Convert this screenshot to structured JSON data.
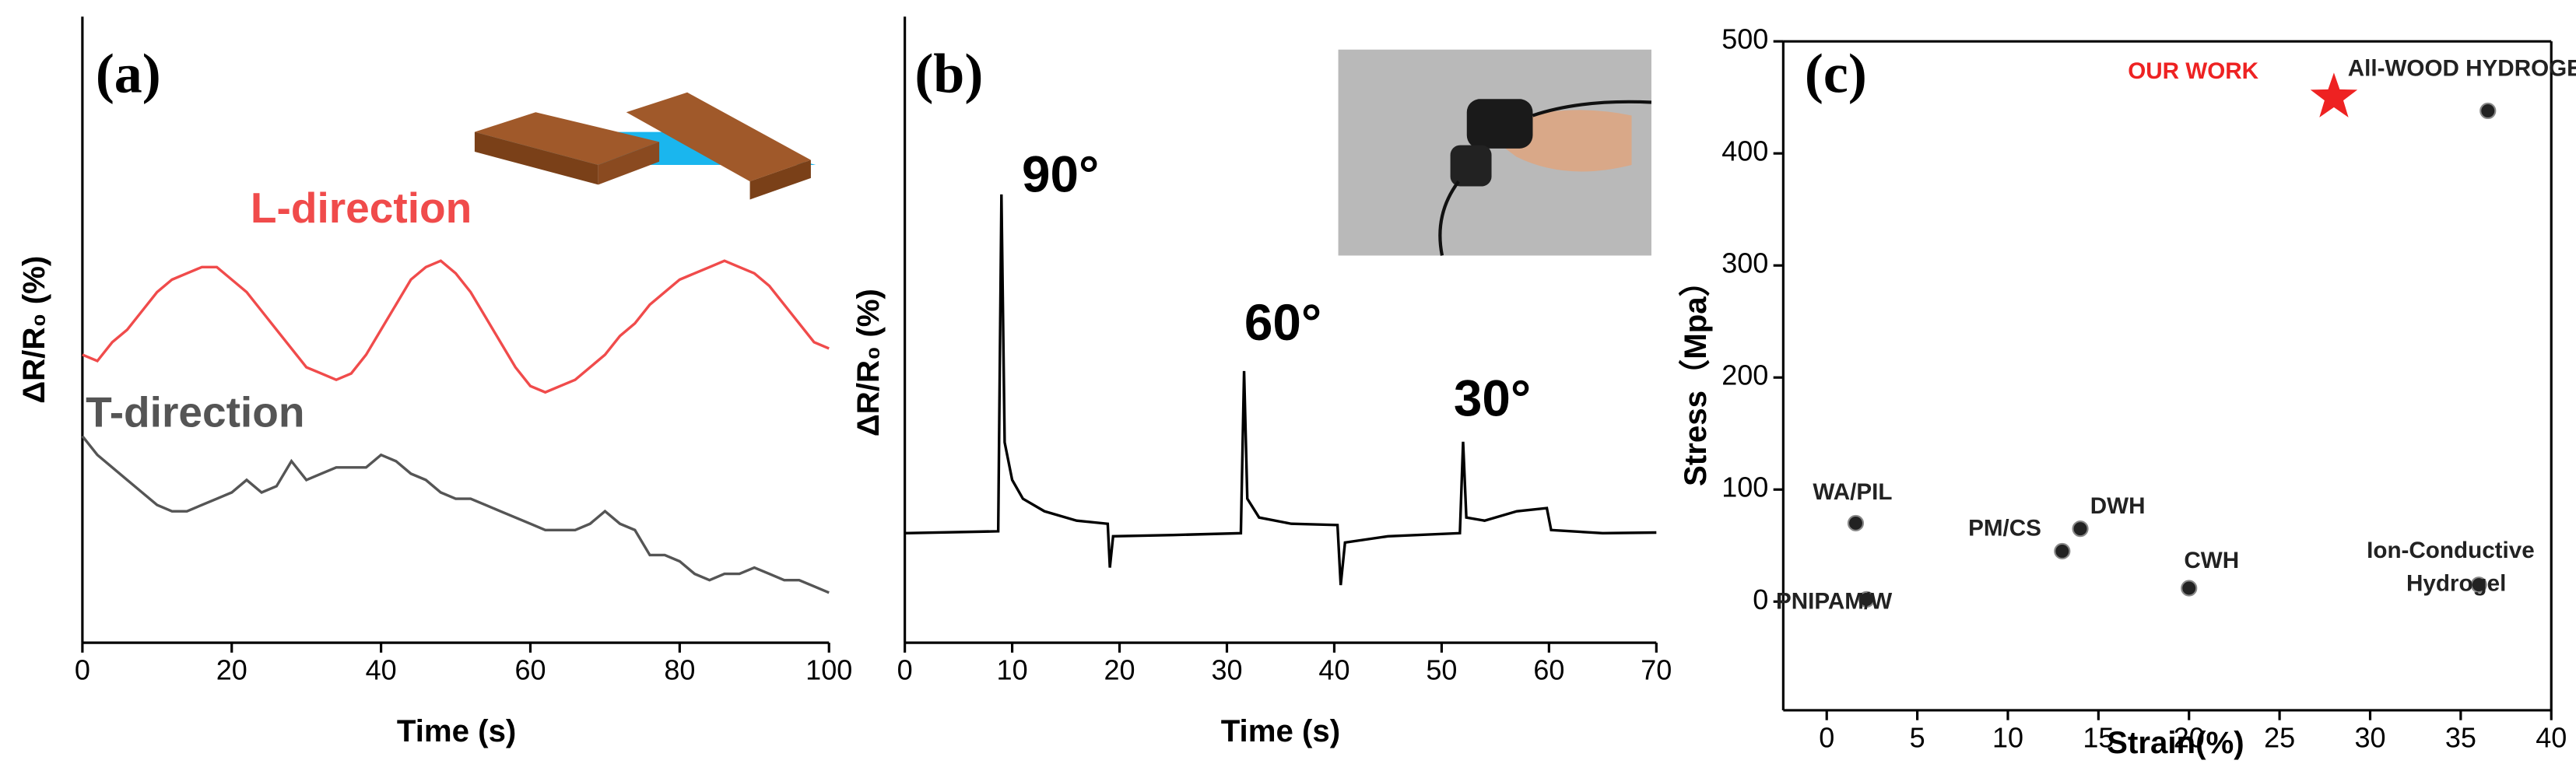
{
  "chart_data": [
    {
      "type": "line",
      "panel_label": "(a)",
      "xlabel": "Time (s)",
      "ylabel": "ΔR/R₀ (%)",
      "xlim": [
        0,
        100
      ],
      "ylim": [
        0,
        10
      ],
      "xticks": [
        0,
        20,
        40,
        60,
        80,
        100
      ],
      "x": [
        0,
        2,
        4,
        6,
        8,
        10,
        12,
        14,
        16,
        18,
        20,
        22,
        24,
        26,
        28,
        30,
        32,
        34,
        36,
        38,
        40,
        42,
        44,
        46,
        48,
        50,
        52,
        54,
        56,
        58,
        60,
        62,
        64,
        66,
        68,
        70,
        72,
        74,
        76,
        78,
        80,
        82,
        84,
        86,
        88,
        90,
        92,
        94,
        96,
        98,
        100
      ],
      "series": [
        {
          "name": "L-direction",
          "color": "#f04b4b",
          "values": [
            4.6,
            4.5,
            4.8,
            5.0,
            5.3,
            5.6,
            5.8,
            5.9,
            6.0,
            6.0,
            5.8,
            5.6,
            5.3,
            5.0,
            4.7,
            4.4,
            4.3,
            4.2,
            4.3,
            4.6,
            5.0,
            5.4,
            5.8,
            6.0,
            6.1,
            5.9,
            5.6,
            5.2,
            4.8,
            4.4,
            4.1,
            4.0,
            4.1,
            4.2,
            4.4,
            4.6,
            4.9,
            5.1,
            5.4,
            5.6,
            5.8,
            5.9,
            6.0,
            6.1,
            6.0,
            5.9,
            5.7,
            5.4,
            5.1,
            4.8,
            4.7
          ]
        },
        {
          "name": "T-direction",
          "color": "#555555",
          "values": [
            3.3,
            3.0,
            2.8,
            2.6,
            2.4,
            2.2,
            2.1,
            2.1,
            2.2,
            2.3,
            2.4,
            2.6,
            2.4,
            2.5,
            2.9,
            2.6,
            2.7,
            2.8,
            2.8,
            2.8,
            3.0,
            2.9,
            2.7,
            2.6,
            2.4,
            2.3,
            2.3,
            2.2,
            2.1,
            2.0,
            1.9,
            1.8,
            1.8,
            1.8,
            1.9,
            2.1,
            1.9,
            1.8,
            1.4,
            1.4,
            1.3,
            1.1,
            1.0,
            1.1,
            1.1,
            1.2,
            1.1,
            1.0,
            1.0,
            0.9,
            0.8
          ]
        }
      ]
    },
    {
      "type": "line",
      "panel_label": "(b)",
      "xlabel": "Time (s)",
      "ylabel": "ΔR/R₀ (%)",
      "xlim": [
        0,
        70
      ],
      "ylim": [
        0,
        10
      ],
      "xticks": [
        0,
        10,
        20,
        30,
        40,
        50,
        60,
        70
      ],
      "x": [
        0,
        8.7,
        9.0,
        9.3,
        10,
        11,
        13,
        16,
        18.9,
        19.1,
        19.4,
        25,
        31.3,
        31.6,
        31.9,
        33,
        36,
        40.3,
        40.6,
        41,
        45,
        51.7,
        52,
        52.3,
        54,
        57,
        59.8,
        60.2,
        65,
        70
      ],
      "series": [
        {
          "color": "#000000",
          "values": [
            1.75,
            1.78,
            7.16,
            3.2,
            2.6,
            2.3,
            2.1,
            1.95,
            1.9,
            1.2,
            1.7,
            1.72,
            1.75,
            4.34,
            2.3,
            2.0,
            1.9,
            1.88,
            0.92,
            1.6,
            1.7,
            1.75,
            3.21,
            2.0,
            1.95,
            2.1,
            2.15,
            1.8,
            1.75,
            1.76
          ]
        }
      ],
      "annotations": [
        "90°",
        "60°",
        "30°"
      ]
    },
    {
      "type": "scatter",
      "panel_label": "(c)",
      "xlabel": "Strain(%)",
      "ylabel": "Stress（Mpa）",
      "xlim": [
        -2.4,
        40
      ],
      "ylim": [
        -97,
        500
      ],
      "xticks": [
        0,
        5,
        10,
        15,
        20,
        25,
        30,
        35,
        40
      ],
      "yticks": [
        0,
        100,
        200,
        300,
        400,
        500
      ],
      "points": [
        {
          "label": [
            "WA/PIL"
          ],
          "x": 1.6,
          "y": 70,
          "color": "#222222"
        },
        {
          "label": [
            "PNIPAM/W"
          ],
          "x": 2.2,
          "y": 2,
          "color": "#222222"
        },
        {
          "label": [
            "PM/CS"
          ],
          "x": 13,
          "y": 45,
          "color": "#222222"
        },
        {
          "label": [
            "DWH"
          ],
          "x": 14,
          "y": 65,
          "color": "#222222"
        },
        {
          "label": [
            "CWH"
          ],
          "x": 20,
          "y": 12,
          "color": "#222222"
        },
        {
          "label": [
            "Ion-Conductive",
            "Hydrogel"
          ],
          "x": 36,
          "y": 15,
          "color": "#222222"
        },
        {
          "label": [
            "All-WOOD HYDROGEL"
          ],
          "x": 36.5,
          "y": 438,
          "color": "#222222"
        },
        {
          "label": [
            "OUR WORK"
          ],
          "x": 28,
          "y": 450,
          "color": "#ee2222",
          "marker": "star"
        }
      ]
    }
  ]
}
